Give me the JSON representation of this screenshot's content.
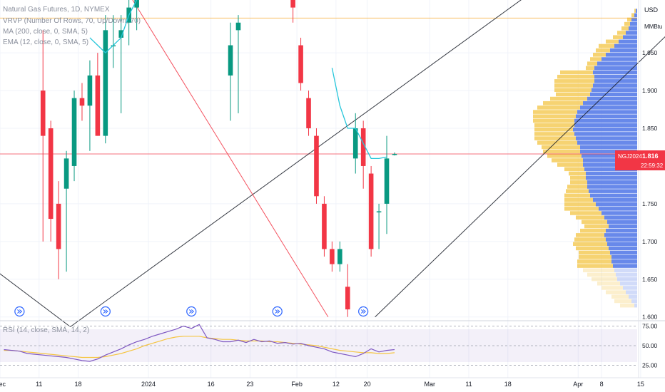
{
  "chart_data": {
    "type": "candlestick",
    "legend_title": "Natural Gas Futures, 1D, NYMEX",
    "indicators": [
      "VRVP (Number Of Rows, 70, Up/Down, 70)",
      "MA (200, close, 0, SMA, 5)",
      "EMA (12, close, 0, SMA, 5)"
    ],
    "currency": "USD",
    "unit": "MMBtu",
    "y_ticks": [
      "1.950",
      "1.900",
      "1.850",
      "1.750",
      "1.700",
      "1.650",
      "1.600"
    ],
    "y_tick_values": [
      1.95,
      1.9,
      1.85,
      1.75,
      1.7,
      1.65,
      1.6
    ],
    "ylim": [
      1.595,
      2.02
    ],
    "last_price": {
      "symbol": "NGJ2024",
      "value": "1.816",
      "value_num": 1.816,
      "countdown": "22:59:32",
      "color": "#f23645"
    },
    "x_labels": [
      {
        "label": "Dec",
        "bar": 0
      },
      {
        "label": "11",
        "bar": 5
      },
      {
        "label": "18",
        "bar": 10
      },
      {
        "label": "2024",
        "bar": 19
      },
      {
        "label": "16",
        "bar": 27
      },
      {
        "label": "23",
        "bar": 32
      },
      {
        "label": "Feb",
        "bar": 38
      },
      {
        "label": "12",
        "bar": 43
      },
      {
        "label": "20",
        "bar": 47
      },
      {
        "label": "Mar",
        "bar": 55
      },
      {
        "label": "11",
        "bar": 60
      },
      {
        "label": "18",
        "bar": 65
      },
      {
        "label": "Apr",
        "bar": 74
      },
      {
        "label": "8",
        "bar": 77
      },
      {
        "label": "15",
        "bar": 82
      }
    ],
    "candles": [
      {
        "bar": 5,
        "open": 1.9,
        "high": 1.98,
        "low": 1.7,
        "close": 1.84
      },
      {
        "bar": 6,
        "open": 1.85,
        "high": 1.86,
        "low": 1.7,
        "close": 1.73
      },
      {
        "bar": 7,
        "open": 1.75,
        "high": 1.78,
        "low": 1.65,
        "close": 1.69
      },
      {
        "bar": 8,
        "open": 1.77,
        "high": 1.82,
        "low": 1.66,
        "close": 1.81
      },
      {
        "bar": 9,
        "open": 1.8,
        "high": 1.9,
        "low": 1.78,
        "close": 1.89
      },
      {
        "bar": 10,
        "open": 1.89,
        "high": 1.91,
        "low": 1.86,
        "close": 1.88
      },
      {
        "bar": 11,
        "open": 1.88,
        "high": 1.94,
        "low": 1.82,
        "close": 1.92
      },
      {
        "bar": 12,
        "open": 1.92,
        "high": 1.95,
        "low": 1.84,
        "close": 1.84
      },
      {
        "bar": 13,
        "open": 1.84,
        "high": 2.0,
        "low": 1.83,
        "close": 1.98
      },
      {
        "bar": 14,
        "open": 1.96,
        "high": 2.0,
        "low": 1.93,
        "close": 1.96
      },
      {
        "bar": 15,
        "open": 1.97,
        "high": 2.0,
        "low": 1.87,
        "close": 1.98
      },
      {
        "bar": 16,
        "open": 1.99,
        "high": 2.02,
        "low": 1.96,
        "close": 2.01
      },
      {
        "bar": 17,
        "open": 2.01,
        "high": 2.02,
        "low": 1.98,
        "close": 2.02
      },
      {
        "bar": 29,
        "open": 1.92,
        "high": 1.99,
        "low": 1.86,
        "close": 1.96
      },
      {
        "bar": 30,
        "open": 1.98,
        "high": 2.0,
        "low": 1.87,
        "close": 1.99
      },
      {
        "bar": 37,
        "open": 2.02,
        "high": 2.02,
        "low": 1.99,
        "close": 2.01
      },
      {
        "bar": 38,
        "open": 1.96,
        "high": 1.97,
        "low": 1.9,
        "close": 1.91
      },
      {
        "bar": 39,
        "open": 1.89,
        "high": 1.9,
        "low": 1.84,
        "close": 1.85
      },
      {
        "bar": 40,
        "open": 1.84,
        "high": 1.85,
        "low": 1.75,
        "close": 1.76
      },
      {
        "bar": 41,
        "open": 1.75,
        "high": 1.76,
        "low": 1.68,
        "close": 1.69
      },
      {
        "bar": 42,
        "open": 1.69,
        "high": 1.7,
        "low": 1.66,
        "close": 1.67
      },
      {
        "bar": 43,
        "open": 1.67,
        "high": 1.7,
        "low": 1.66,
        "close": 1.69
      },
      {
        "bar": 44,
        "open": 1.64,
        "high": 1.67,
        "low": 1.6,
        "close": 1.61
      },
      {
        "bar": 45,
        "open": 1.81,
        "high": 1.87,
        "low": 1.79,
        "close": 1.85
      },
      {
        "bar": 46,
        "open": 1.85,
        "high": 1.86,
        "low": 1.77,
        "close": 1.8
      },
      {
        "bar": 47,
        "open": 1.79,
        "high": 1.8,
        "low": 1.68,
        "close": 1.69
      },
      {
        "bar": 48,
        "open": 1.74,
        "high": 1.75,
        "low": 1.69,
        "close": 1.74
      },
      {
        "bar": 49,
        "open": 1.75,
        "high": 1.84,
        "low": 1.71,
        "close": 1.81
      },
      {
        "bar": 50,
        "open": 1.816,
        "high": 1.818,
        "low": 1.814,
        "close": 1.816
      }
    ],
    "ema": [
      {
        "bar": 11,
        "value": 1.97
      },
      {
        "bar": 12,
        "value": 1.96
      },
      {
        "bar": 13,
        "value": 1.95
      },
      {
        "bar": 14,
        "value": 1.96
      },
      {
        "bar": 15,
        "value": 1.97
      },
      {
        "bar": 16,
        "value": 2.0
      },
      {
        "bar": 17,
        "value": 2.02
      },
      {
        "bar": 42,
        "value": 1.93
      },
      {
        "bar": 43,
        "value": 1.88
      },
      {
        "bar": 44,
        "value": 1.85
      },
      {
        "bar": 45,
        "value": 1.85
      },
      {
        "bar": 46,
        "value": 1.83
      },
      {
        "bar": 47,
        "value": 1.81
      },
      {
        "bar": 48,
        "value": 1.81
      },
      {
        "bar": 49,
        "value": 1.812
      }
    ],
    "rsi": {
      "label": "RSI (14, close, SMA, 14, 2)",
      "ticks": [
        "75.00",
        "50.00",
        "25.00"
      ],
      "tick_values": [
        75,
        50,
        25
      ],
      "ylim": [
        20,
        80
      ],
      "rsi_values": [
        45,
        44,
        43,
        40,
        39,
        38,
        37,
        36,
        35,
        33,
        31,
        30,
        33,
        38,
        42,
        46,
        51,
        55,
        58,
        62,
        65,
        68,
        71,
        75,
        72,
        77,
        60,
        58,
        55,
        55,
        57,
        54,
        58,
        55,
        56,
        53,
        54,
        52,
        53,
        50,
        48,
        46,
        42,
        40,
        38,
        36,
        40,
        46,
        42,
        44,
        45
      ],
      "rsi_ma_values": [
        44,
        44,
        43,
        42,
        41,
        40,
        39,
        38,
        37,
        36,
        35,
        35,
        35,
        36,
        38,
        40,
        43,
        46,
        50,
        53,
        56,
        59,
        61,
        62,
        62,
        62,
        60,
        59,
        58,
        58,
        57,
        56,
        56,
        56,
        55,
        55,
        54,
        53,
        52,
        51,
        50,
        48,
        46,
        44,
        43,
        42,
        41,
        41,
        40,
        40,
        41
      ],
      "rsi_color": "#7e57c2",
      "ma_color": "#f5c542"
    },
    "volume_profile": {
      "row_count": 70,
      "up_color": "#5b7fe8",
      "down_color": "#f4c74a",
      "up_lengths": [
        0,
        0,
        0.01,
        0.02,
        0.04,
        0.05,
        0.06,
        0.08,
        0.1,
        0.13,
        0.16,
        0.19,
        0.22,
        0.25,
        0.28,
        0.3,
        0.31,
        0.3,
        0.3,
        0.31,
        0.32,
        0.33,
        0.35,
        0.38,
        0.4,
        0.42,
        0.43,
        0.44,
        0.44,
        0.45,
        0.44,
        0.43,
        0.42,
        0.4,
        0.4,
        0.39,
        0.38,
        0.38,
        0.37,
        0.36,
        0.36,
        0.35,
        0.35,
        0.34,
        0.33,
        0.31,
        0.29,
        0.27,
        0.25,
        0.23,
        0.21,
        0.2,
        0.22,
        0.23,
        0.22,
        0.21,
        0.2,
        0.19,
        0.18,
        0.18,
        0.17,
        0.16,
        0.15,
        0.14,
        0.12,
        0.1,
        0.08,
        0.06,
        0.04,
        0.02
      ],
      "down_lengths": [
        0,
        0,
        0.01,
        0.02,
        0.03,
        0.04,
        0.05,
        0.06,
        0.07,
        0.09,
        0.11,
        0.1,
        0.09,
        0.08,
        0.07,
        0.06,
        0.23,
        0.26,
        0.28,
        0.27,
        0.26,
        0.24,
        0.26,
        0.28,
        0.3,
        0.31,
        0.3,
        0.29,
        0.28,
        0.27,
        0.28,
        0.29,
        0.28,
        0.27,
        0.26,
        0.24,
        0.22,
        0.18,
        0.14,
        0.12,
        0.11,
        0.12,
        0.14,
        0.16,
        0.18,
        0.2,
        0.22,
        0.24,
        0.22,
        0.2,
        0.18,
        0.17,
        0.18,
        0.2,
        0.22,
        0.24,
        0.23,
        0.22,
        0.23,
        0.24,
        0.25,
        0.22,
        0.2,
        0.18,
        0.16,
        0.15,
        0.14,
        0.12,
        0.12,
        0.1
      ]
    },
    "trendlines": [
      {
        "from": {
          "bar": -1,
          "value": 1.665
        },
        "to": {
          "bar": 9,
          "value": 1.587
        },
        "color": "#131722"
      },
      {
        "from": {
          "bar": 9,
          "value": 1.587
        },
        "to": {
          "bar": 70,
          "value": 2.045
        },
        "color": "#131722"
      },
      {
        "from": {
          "bar": 14,
          "value": 2.07
        },
        "to": {
          "bar": 42,
          "value": 1.6
        },
        "color": "#f23645"
      },
      {
        "from": {
          "bar": 48,
          "value": 1.6
        },
        "to": {
          "bar": 91,
          "value": 2.03
        },
        "color": "#131722"
      }
    ],
    "horizontal_lines": [
      {
        "value": 1.996,
        "color": "#f5a623"
      },
      {
        "value": 1.816,
        "color": "#f23645"
      }
    ],
    "event_markers": [
      {
        "bar": 1
      },
      {
        "bar": 12
      },
      {
        "bar": 23
      },
      {
        "bar": 34
      },
      {
        "bar": 45
      }
    ],
    "colors": {
      "up": "#089981",
      "down": "#f23645",
      "ema": "#26c6da",
      "grid": "#f0f3fa",
      "axis_text": "#131722"
    }
  }
}
